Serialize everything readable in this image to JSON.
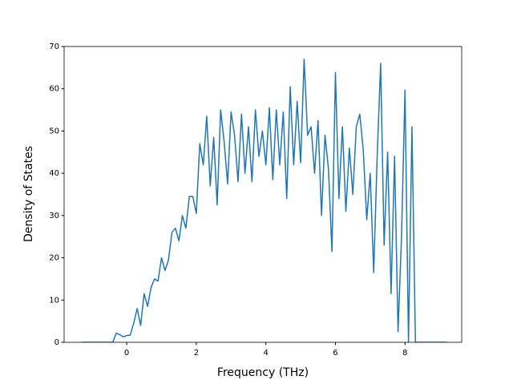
{
  "chart_data": {
    "type": "line",
    "xlabel": "Frequency (THz)",
    "ylabel": "Density of States",
    "x": [
      -1.3,
      -1.2,
      -1.1,
      -1.0,
      -0.9,
      -0.8,
      -0.7,
      -0.6,
      -0.5,
      -0.4,
      -0.3,
      -0.2,
      -0.1,
      0.0,
      0.1,
      0.2,
      0.3,
      0.4,
      0.5,
      0.6,
      0.7,
      0.8,
      0.9,
      1.0,
      1.1,
      1.2,
      1.3,
      1.4,
      1.5,
      1.6,
      1.7,
      1.8,
      1.9,
      2.0,
      2.1,
      2.2,
      2.3,
      2.4,
      2.5,
      2.6,
      2.7,
      2.8,
      2.9,
      3.0,
      3.1,
      3.2,
      3.3,
      3.4,
      3.5,
      3.6,
      3.7,
      3.8,
      3.9,
      4.0,
      4.1,
      4.2,
      4.3,
      4.4,
      4.5,
      4.6,
      4.7,
      4.8,
      4.9,
      5.0,
      5.1,
      5.2,
      5.3,
      5.4,
      5.5,
      5.6,
      5.7,
      5.8,
      5.9,
      6.0,
      6.1,
      6.2,
      6.3,
      6.4,
      6.5,
      6.6,
      6.7,
      6.8,
      6.9,
      7.0,
      7.1,
      7.2,
      7.3,
      7.4,
      7.5,
      7.6,
      7.7,
      7.8,
      7.9,
      8.0,
      8.1,
      8.2,
      8.3,
      8.4,
      8.5,
      8.6,
      8.7,
      8.8,
      8.9,
      9.0,
      9.1,
      9.2
    ],
    "series": [
      {
        "color": "#1f77b4",
        "values": [
          0,
          0,
          0,
          0,
          0,
          0,
          0,
          0,
          0,
          0,
          2.2,
          1.8,
          1.3,
          1.6,
          1.7,
          4.5,
          8,
          4,
          11.5,
          8.5,
          13,
          15,
          14.5,
          20,
          17,
          19.5,
          26,
          27,
          24,
          30,
          27,
          34.5,
          34.5,
          30.5,
          47,
          42,
          53.5,
          37,
          48.5,
          32.5,
          55,
          47.5,
          37.5,
          54.5,
          49,
          38,
          54,
          40,
          51,
          38,
          55,
          44,
          50,
          42,
          55.5,
          38.5,
          55,
          42,
          54.5,
          34,
          60.5,
          42,
          57,
          42.5,
          67,
          49,
          51,
          40,
          52.5,
          30,
          49,
          41,
          21.5,
          63.8,
          34,
          51,
          31,
          46,
          35,
          51,
          54,
          45.5,
          29,
          40,
          16.5,
          44,
          66,
          23,
          45,
          11.5,
          44,
          2.5,
          25,
          59.7,
          0,
          51,
          0,
          0,
          0,
          0,
          0,
          0,
          0,
          0,
          0,
          0
        ]
      }
    ],
    "xlim": [
      -1.8,
      9.63
    ],
    "ylim": [
      0,
      70
    ],
    "xticks": [
      0,
      2,
      4,
      6,
      8
    ],
    "yticks": [
      0,
      10,
      20,
      30,
      40,
      50,
      60,
      70
    ]
  }
}
